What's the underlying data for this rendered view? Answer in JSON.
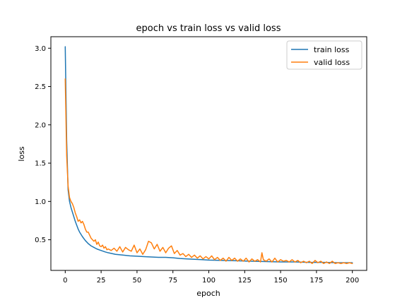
{
  "chart_data": {
    "type": "line",
    "title": "epoch vs train loss vs valid loss",
    "xlabel": "epoch",
    "ylabel": "loss",
    "xlim": [
      -10,
      210
    ],
    "ylim": [
      0.1,
      3.15
    ],
    "xticks": [
      0,
      25,
      50,
      75,
      100,
      125,
      150,
      175,
      200
    ],
    "yticks": [
      0.5,
      1.0,
      1.5,
      2.0,
      2.5,
      3.0
    ],
    "ytick_labels": [
      "0.5",
      "1.0",
      "1.5",
      "2.0",
      "2.5",
      "3.0"
    ],
    "grid": false,
    "legend_position": "top-right",
    "series": [
      {
        "name": "train loss",
        "color": "#1f77b4",
        "points": [
          [
            0,
            3.02
          ],
          [
            1,
            1.8
          ],
          [
            2,
            1.15
          ],
          [
            3,
            1.0
          ],
          [
            4,
            0.92
          ],
          [
            5,
            0.86
          ],
          [
            6,
            0.8
          ],
          [
            7,
            0.74
          ],
          [
            8,
            0.69
          ],
          [
            9,
            0.64
          ],
          [
            10,
            0.6
          ],
          [
            12,
            0.54
          ],
          [
            14,
            0.49
          ],
          [
            16,
            0.45
          ],
          [
            18,
            0.42
          ],
          [
            20,
            0.4
          ],
          [
            22,
            0.38
          ],
          [
            25,
            0.36
          ],
          [
            28,
            0.34
          ],
          [
            30,
            0.33
          ],
          [
            35,
            0.31
          ],
          [
            40,
            0.3
          ],
          [
            45,
            0.29
          ],
          [
            50,
            0.285
          ],
          [
            55,
            0.28
          ],
          [
            60,
            0.275
          ],
          [
            65,
            0.27
          ],
          [
            70,
            0.27
          ],
          [
            75,
            0.265
          ],
          [
            80,
            0.255
          ],
          [
            85,
            0.25
          ],
          [
            90,
            0.245
          ],
          [
            95,
            0.24
          ],
          [
            100,
            0.235
          ],
          [
            110,
            0.23
          ],
          [
            120,
            0.225
          ],
          [
            130,
            0.22
          ],
          [
            140,
            0.215
          ],
          [
            150,
            0.21
          ],
          [
            160,
            0.21
          ],
          [
            170,
            0.205
          ],
          [
            180,
            0.205
          ],
          [
            190,
            0.2
          ],
          [
            200,
            0.2
          ]
        ]
      },
      {
        "name": "valid loss",
        "color": "#ff7f0e",
        "points": [
          [
            0,
            2.6
          ],
          [
            1,
            1.6
          ],
          [
            2,
            1.2
          ],
          [
            3,
            1.05
          ],
          [
            4,
            1.0
          ],
          [
            5,
            0.97
          ],
          [
            6,
            0.92
          ],
          [
            7,
            0.85
          ],
          [
            8,
            0.8
          ],
          [
            9,
            0.74
          ],
          [
            10,
            0.76
          ],
          [
            11,
            0.72
          ],
          [
            12,
            0.74
          ],
          [
            13,
            0.7
          ],
          [
            14,
            0.64
          ],
          [
            15,
            0.6
          ],
          [
            16,
            0.6
          ],
          [
            17,
            0.56
          ],
          [
            18,
            0.52
          ],
          [
            19,
            0.5
          ],
          [
            20,
            0.48
          ],
          [
            21,
            0.5
          ],
          [
            22,
            0.44
          ],
          [
            23,
            0.47
          ],
          [
            24,
            0.42
          ],
          [
            25,
            0.41
          ],
          [
            26,
            0.43
          ],
          [
            27,
            0.39
          ],
          [
            28,
            0.41
          ],
          [
            29,
            0.37
          ],
          [
            30,
            0.38
          ],
          [
            32,
            0.36
          ],
          [
            34,
            0.39
          ],
          [
            36,
            0.35
          ],
          [
            38,
            0.41
          ],
          [
            40,
            0.34
          ],
          [
            42,
            0.4
          ],
          [
            44,
            0.37
          ],
          [
            46,
            0.35
          ],
          [
            48,
            0.43
          ],
          [
            50,
            0.33
          ],
          [
            52,
            0.38
          ],
          [
            54,
            0.31
          ],
          [
            56,
            0.37
          ],
          [
            58,
            0.48
          ],
          [
            60,
            0.46
          ],
          [
            62,
            0.38
          ],
          [
            64,
            0.44
          ],
          [
            66,
            0.35
          ],
          [
            68,
            0.4
          ],
          [
            70,
            0.33
          ],
          [
            72,
            0.39
          ],
          [
            74,
            0.42
          ],
          [
            76,
            0.32
          ],
          [
            78,
            0.36
          ],
          [
            80,
            0.3
          ],
          [
            82,
            0.32
          ],
          [
            84,
            0.28
          ],
          [
            86,
            0.31
          ],
          [
            88,
            0.27
          ],
          [
            90,
            0.3
          ],
          [
            92,
            0.26
          ],
          [
            94,
            0.29
          ],
          [
            96,
            0.25
          ],
          [
            98,
            0.28
          ],
          [
            100,
            0.25
          ],
          [
            102,
            0.29
          ],
          [
            104,
            0.24
          ],
          [
            106,
            0.27
          ],
          [
            108,
            0.23
          ],
          [
            110,
            0.26
          ],
          [
            112,
            0.22
          ],
          [
            114,
            0.27
          ],
          [
            116,
            0.23
          ],
          [
            118,
            0.26
          ],
          [
            120,
            0.22
          ],
          [
            122,
            0.25
          ],
          [
            124,
            0.22
          ],
          [
            126,
            0.26
          ],
          [
            128,
            0.21
          ],
          [
            130,
            0.25
          ],
          [
            132,
            0.22
          ],
          [
            134,
            0.24
          ],
          [
            136,
            0.21
          ],
          [
            137,
            0.33
          ],
          [
            138,
            0.24
          ],
          [
            140,
            0.22
          ],
          [
            142,
            0.25
          ],
          [
            144,
            0.21
          ],
          [
            146,
            0.26
          ],
          [
            148,
            0.21
          ],
          [
            150,
            0.24
          ],
          [
            152,
            0.22
          ],
          [
            154,
            0.23
          ],
          [
            156,
            0.21
          ],
          [
            158,
            0.24
          ],
          [
            160,
            0.21
          ],
          [
            162,
            0.23
          ],
          [
            164,
            0.2
          ],
          [
            166,
            0.22
          ],
          [
            168,
            0.2
          ],
          [
            170,
            0.22
          ],
          [
            172,
            0.19
          ],
          [
            174,
            0.23
          ],
          [
            176,
            0.2
          ],
          [
            178,
            0.22
          ],
          [
            180,
            0.19
          ],
          [
            182,
            0.21
          ],
          [
            184,
            0.19
          ],
          [
            186,
            0.22
          ],
          [
            188,
            0.19
          ],
          [
            190,
            0.2
          ],
          [
            192,
            0.19
          ],
          [
            194,
            0.2
          ],
          [
            196,
            0.19
          ],
          [
            198,
            0.2
          ],
          [
            200,
            0.19
          ]
        ]
      }
    ]
  }
}
